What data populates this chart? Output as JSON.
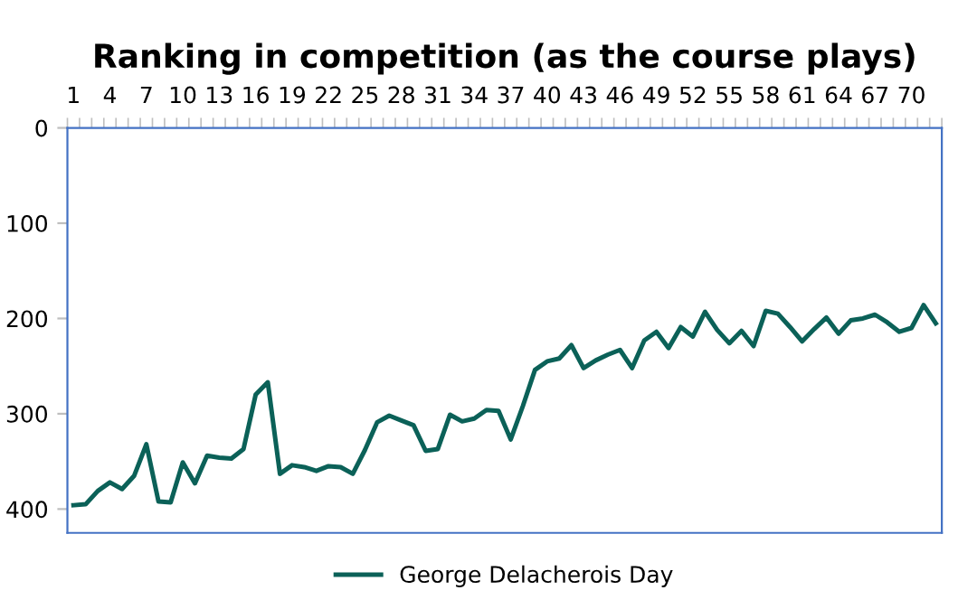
{
  "chart_data": {
    "type": "line",
    "title": "Ranking in competition (as the course plays)",
    "categories": [
      "1",
      null,
      null,
      "4",
      null,
      null,
      "7",
      null,
      null,
      "10",
      null,
      null,
      "13",
      null,
      null,
      "16",
      null,
      null,
      "19",
      null,
      null,
      "22",
      null,
      null,
      "25",
      null,
      null,
      "28",
      null,
      null,
      "31",
      null,
      null,
      "34",
      null,
      null,
      "37",
      null,
      null,
      "40",
      null,
      null,
      "43",
      null,
      null,
      "46",
      null,
      null,
      "49",
      null,
      null,
      "52",
      null,
      null,
      "55",
      null,
      null,
      "58",
      null,
      null,
      "61",
      null,
      null,
      "64",
      null,
      null,
      "67",
      null,
      null,
      "70",
      null,
      null
    ],
    "series": [
      {
        "name": "George Delacherois Day",
        "color": "#0b6158",
        "values": [
          396,
          395,
          381,
          372,
          379,
          365,
          332,
          392,
          393,
          351,
          373,
          344,
          346,
          347,
          337,
          280,
          267,
          363,
          354,
          356,
          360,
          355,
          356,
          363,
          338,
          309,
          302,
          307,
          312,
          339,
          337,
          301,
          308,
          305,
          296,
          297,
          327,
          292,
          254,
          245,
          242,
          228,
          252,
          244,
          238,
          233,
          252,
          223,
          214,
          231,
          209,
          219,
          193,
          212,
          226,
          213,
          229,
          192,
          195,
          209,
          224,
          211,
          199,
          216,
          202,
          200,
          196,
          204,
          214,
          210,
          186,
          205
        ]
      }
    ],
    "ylim": [
      425,
      0
    ],
    "yticks": [
      0,
      100,
      200,
      300,
      400
    ],
    "grid": false,
    "legend": "bottom",
    "marker": "none",
    "line_style": "solid"
  }
}
